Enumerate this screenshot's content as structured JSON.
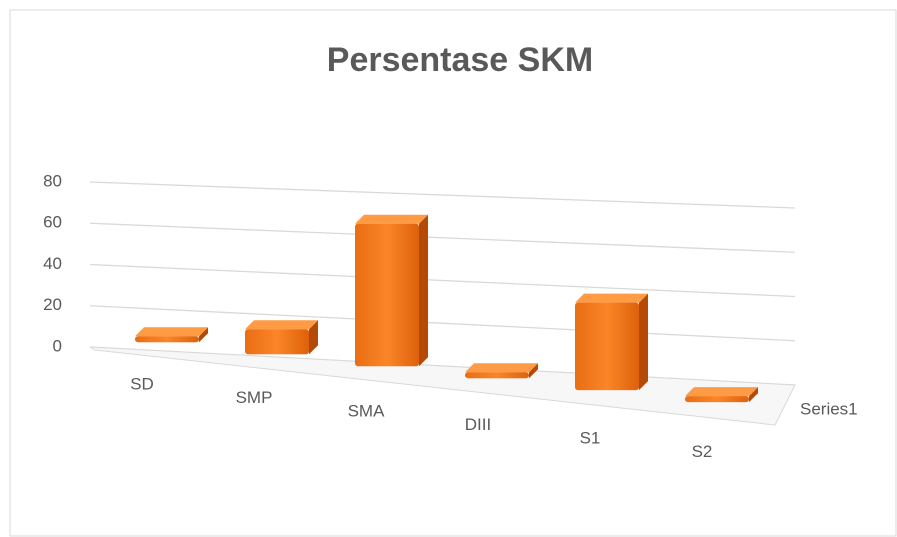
{
  "chart_data": {
    "type": "bar3d",
    "title": "Persentase SKM",
    "categories": [
      "SD",
      "SMP",
      "SMA",
      "DIII",
      "S1",
      "S2"
    ],
    "series": [
      {
        "name": "Series1",
        "color": "#f07820",
        "values": [
          2,
          10,
          57,
          1,
          35,
          1
        ]
      }
    ],
    "ylim": [
      0,
      80
    ],
    "yticks": [
      0,
      20,
      40,
      60,
      80
    ],
    "grid": true
  }
}
